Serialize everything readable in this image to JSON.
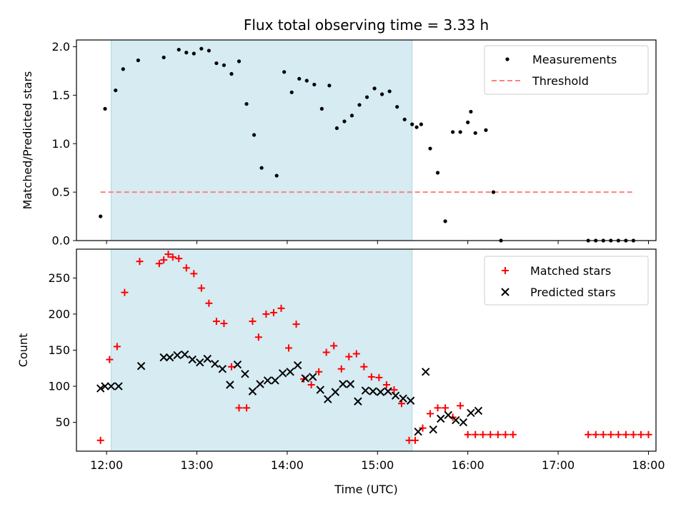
{
  "chart_data": [
    {
      "type": "scatter",
      "title": "Flux total observing time = 3.33 h",
      "ylabel": "Matched/Predicted stars",
      "xlabel": "",
      "xlim": [
        "11:40",
        "18:05"
      ],
      "ylim": [
        0,
        2.07
      ],
      "yticks": [
        0.0,
        0.5,
        1.0,
        1.5,
        2.0
      ],
      "ytick_labels": [
        "0.0",
        "0.5",
        "1.0",
        "1.5",
        "2.0"
      ],
      "highlight_span": [
        "12:03",
        "15:23"
      ],
      "legend_position": "top-right",
      "grid": false,
      "series": [
        {
          "name": "Measurements",
          "marker": "dot",
          "color": "#000000",
          "x": [
            "11:56",
            "11:59",
            "12:06",
            "12:11",
            "12:21",
            "12:38",
            "12:48",
            "12:53",
            "12:58",
            "13:03",
            "13:08",
            "13:13",
            "13:18",
            "13:23",
            "13:28",
            "13:33",
            "13:38",
            "13:43",
            "13:53",
            "13:58",
            "14:03",
            "14:08",
            "14:13",
            "14:18",
            "14:23",
            "14:28",
            "14:33",
            "14:38",
            "14:43",
            "14:48",
            "14:53",
            "14:58",
            "15:03",
            "15:08",
            "15:13",
            "15:18",
            "15:23",
            "15:26",
            "15:29",
            "15:35",
            "15:40",
            "15:45",
            "15:50",
            "15:55",
            "16:00",
            "16:02",
            "16:05",
            "16:12",
            "16:17",
            "16:22",
            "17:20",
            "17:25",
            "17:30",
            "17:35",
            "17:40",
            "17:45",
            "17:50"
          ],
          "y": [
            0.25,
            1.36,
            1.55,
            1.77,
            1.86,
            1.89,
            1.97,
            1.94,
            1.93,
            1.98,
            1.96,
            1.83,
            1.81,
            1.72,
            1.85,
            1.41,
            1.09,
            0.75,
            0.67,
            1.74,
            1.53,
            1.67,
            1.65,
            1.61,
            1.36,
            1.6,
            1.16,
            1.23,
            1.29,
            1.4,
            1.48,
            1.57,
            1.51,
            1.54,
            1.38,
            1.25,
            1.2,
            1.17,
            1.2,
            0.95,
            0.7,
            0.2,
            1.12,
            1.12,
            1.22,
            1.33,
            1.11,
            1.14,
            0.5,
            0.0,
            0.0,
            0.0,
            0.0,
            0.0,
            0.0,
            0.0,
            0.0
          ]
        },
        {
          "name": "Threshold",
          "marker": "dashed-line",
          "color": "#ff7f7f",
          "x": [
            "11:56",
            "17:50"
          ],
          "y": [
            0.5,
            0.5
          ]
        }
      ]
    },
    {
      "type": "scatter",
      "title": "",
      "ylabel": "Count",
      "xlabel": "Time (UTC)",
      "xlim": [
        "11:40",
        "18:05"
      ],
      "ylim": [
        10,
        290
      ],
      "yticks": [
        50,
        100,
        150,
        200,
        250
      ],
      "ytick_labels": [
        "50",
        "100",
        "150",
        "200",
        "250"
      ],
      "xticks": [
        "12:00",
        "13:00",
        "14:00",
        "15:00",
        "16:00",
        "17:00",
        "18:00"
      ],
      "xtick_labels": [
        "12:00",
        "13:00",
        "14:00",
        "15:00",
        "16:00",
        "17:00",
        "18:00"
      ],
      "highlight_span": [
        "12:03",
        "15:23"
      ],
      "legend_position": "top-right",
      "grid": false,
      "series": [
        {
          "name": "Matched stars",
          "marker": "plus",
          "color": "#ff0000",
          "x": [
            "11:56",
            "12:02",
            "12:07",
            "12:12",
            "12:22",
            "12:35",
            "12:38",
            "12:41",
            "12:44",
            "12:48",
            "12:53",
            "12:58",
            "13:03",
            "13:08",
            "13:13",
            "13:18",
            "13:23",
            "13:28",
            "13:33",
            "13:37",
            "13:41",
            "13:46",
            "13:51",
            "13:56",
            "14:01",
            "14:06",
            "14:11",
            "14:16",
            "14:21",
            "14:26",
            "14:31",
            "14:36",
            "14:41",
            "14:46",
            "14:51",
            "14:56",
            "15:01",
            "15:06",
            "15:11",
            "15:16",
            "15:21",
            "15:25",
            "15:30",
            "15:35",
            "15:40",
            "15:45",
            "15:50",
            "15:55",
            "16:00",
            "16:05",
            "16:10",
            "16:15",
            "16:20",
            "16:25",
            "16:30",
            "17:20",
            "17:25",
            "17:30",
            "17:35",
            "17:40",
            "17:45",
            "17:50",
            "17:55",
            "18:00"
          ],
          "y": [
            25,
            137,
            155,
            230,
            273,
            270,
            275,
            283,
            279,
            277,
            264,
            256,
            236,
            215,
            190,
            187,
            127,
            70,
            70,
            190,
            168,
            200,
            202,
            208,
            153,
            186,
            110,
            102,
            120,
            147,
            156,
            124,
            141,
            145,
            127,
            113,
            112,
            102,
            95,
            76,
            25,
            25,
            42,
            62,
            70,
            70,
            57,
            73,
            33,
            33,
            33,
            33,
            33,
            33,
            33,
            33,
            33,
            33,
            33,
            33,
            33,
            33,
            33,
            33
          ]
        },
        {
          "name": "Predicted stars",
          "marker": "x",
          "color": "#000000",
          "x": [
            "11:56",
            "11:59",
            "12:03",
            "12:08",
            "12:23",
            "12:38",
            "12:42",
            "12:47",
            "12:52",
            "12:57",
            "13:02",
            "13:07",
            "13:12",
            "13:17",
            "13:22",
            "13:27",
            "13:32",
            "13:37",
            "13:42",
            "13:47",
            "13:52",
            "13:57",
            "14:02",
            "14:07",
            "14:12",
            "14:17",
            "14:22",
            "14:27",
            "14:32",
            "14:37",
            "14:42",
            "14:47",
            "14:52",
            "14:57",
            "15:02",
            "15:07",
            "15:12",
            "15:17",
            "15:22",
            "15:27",
            "15:32",
            "15:37",
            "15:42",
            "15:47",
            "15:52",
            "15:57",
            "16:02",
            "16:07"
          ],
          "y": [
            97,
            100,
            100,
            100,
            128,
            140,
            140,
            143,
            144,
            137,
            133,
            138,
            131,
            124,
            102,
            130,
            117,
            93,
            103,
            108,
            108,
            118,
            120,
            129,
            111,
            113,
            95,
            82,
            92,
            103,
            103,
            79,
            94,
            93,
            92,
            93,
            87,
            83,
            80,
            37,
            120,
            40,
            55,
            60,
            53,
            50,
            63,
            66
          ]
        }
      ]
    }
  ]
}
